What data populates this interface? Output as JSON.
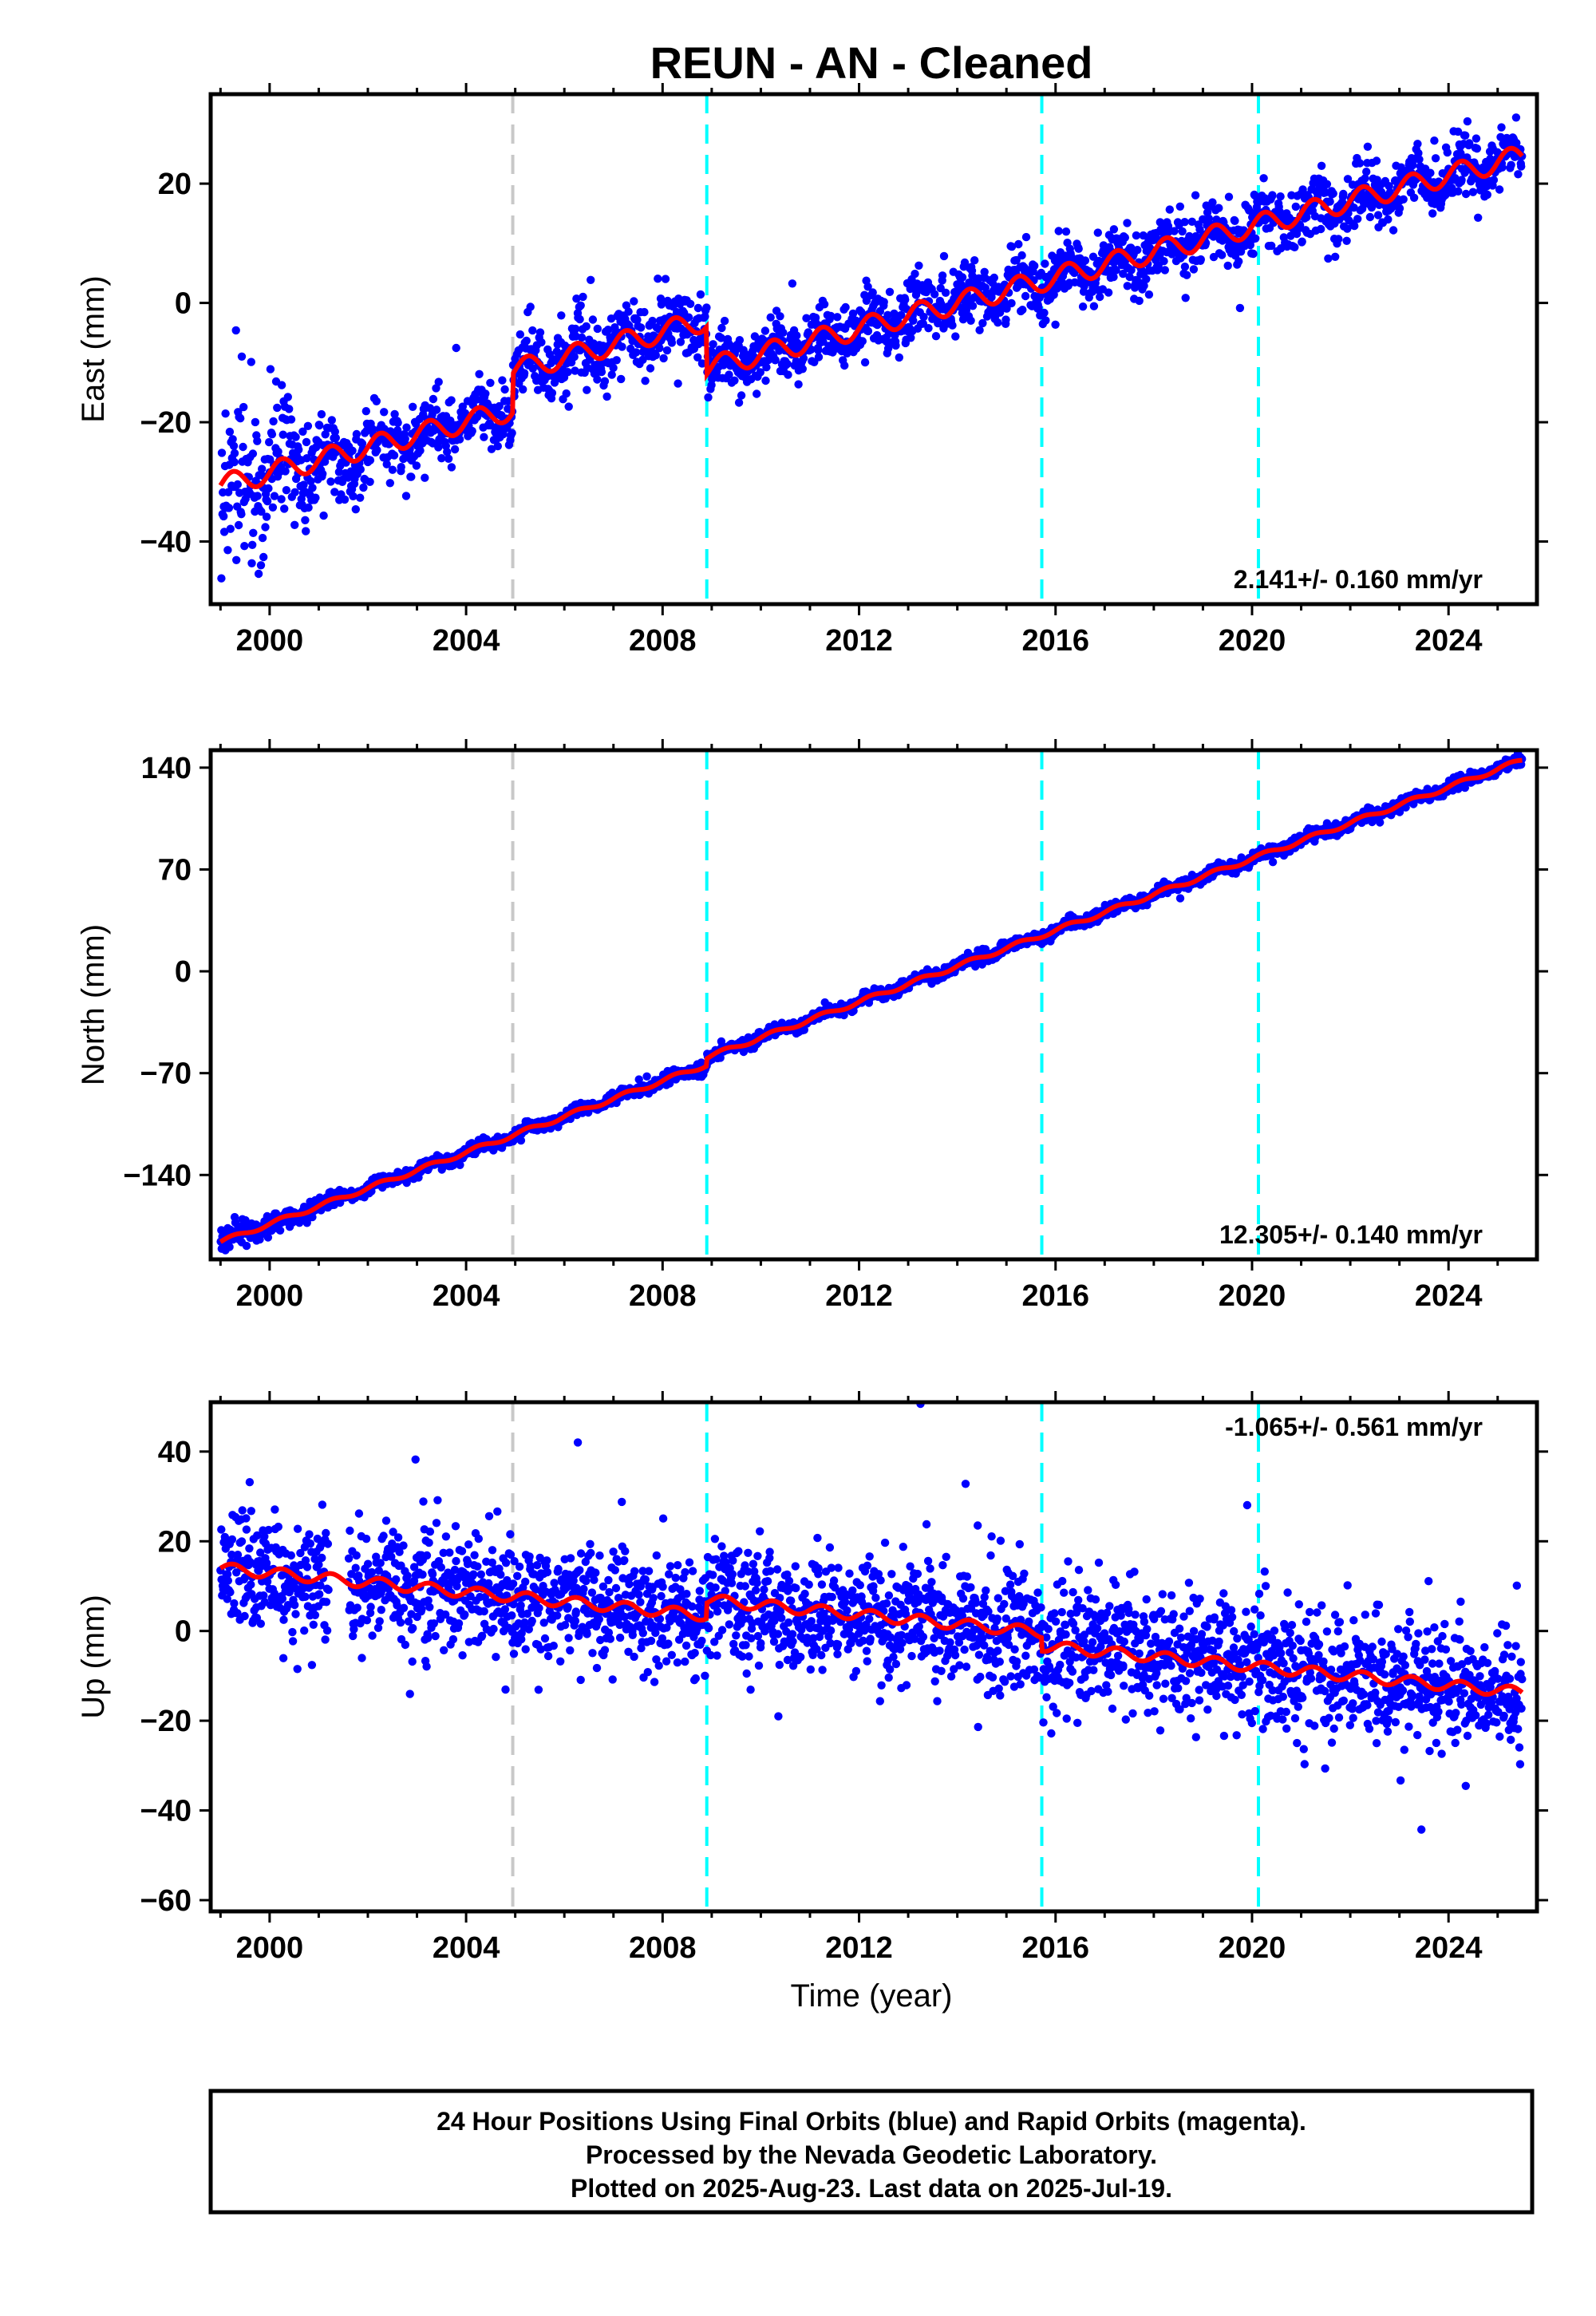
{
  "title": "REUN  - AN - Cleaned",
  "colors": {
    "data": "#0000ff",
    "model": "#ff0000",
    "antenna_change": "#00ffff",
    "other_event": "#c8c8c8"
  },
  "chart_data": [
    {
      "type": "scatter",
      "panel": "east",
      "ylabel": "East (mm)",
      "xlabel": "",
      "xlim": [
        1998.8,
        2025.8
      ],
      "ylim": [
        -50.5,
        35
      ],
      "yticks": [
        20,
        0,
        -20,
        -40
      ],
      "xticks": [
        2000,
        2004,
        2008,
        2012,
        2016,
        2020,
        2024
      ],
      "rate_label": "2.141+/- 0.160 mm/yr",
      "events": [
        {
          "x": 2004.95,
          "kind": "other"
        },
        {
          "x": 2008.9,
          "kind": "antenna"
        },
        {
          "x": 2015.72,
          "kind": "antenna"
        },
        {
          "x": 2020.13,
          "kind": "antenna"
        }
      ],
      "model": {
        "start": 1999.0,
        "end": 2025.5,
        "offset_at_start": -30.6,
        "rate": 2.141,
        "annual_amplitude": 1.8,
        "steps": [
          {
            "x": 2004.95,
            "dy": 6.5
          },
          {
            "x": 2008.9,
            "dy": -8.0
          }
        ]
      },
      "scatter": {
        "sigma": 2.6,
        "count": 2400,
        "early_extra_sigma": 5.0
      },
      "series": [
        {
          "values": "daily positions"
        }
      ]
    },
    {
      "type": "scatter",
      "panel": "north",
      "ylabel": "North (mm)",
      "xlabel": "",
      "xlim": [
        1998.8,
        2025.8
      ],
      "ylim": [
        -198,
        152
      ],
      "yticks": [
        140,
        70,
        0,
        -70,
        -140
      ],
      "xticks": [
        2000,
        2004,
        2008,
        2012,
        2016,
        2020,
        2024
      ],
      "rate_label": "12.305+/- 0.140 mm/yr",
      "events": [
        {
          "x": 2004.95,
          "kind": "other"
        },
        {
          "x": 2008.9,
          "kind": "antenna"
        },
        {
          "x": 2015.72,
          "kind": "antenna"
        },
        {
          "x": 2020.13,
          "kind": "antenna"
        }
      ],
      "model": {
        "start": 1999.0,
        "end": 2025.5,
        "offset_at_start": -186,
        "rate": 12.305,
        "annual_amplitude": 1.5,
        "steps": [
          {
            "x": 2008.9,
            "dy": 5.0
          }
        ]
      },
      "scatter": {
        "sigma": 2.0,
        "count": 2400,
        "early_extra_sigma": 2.0
      },
      "series": [
        {
          "values": "daily positions"
        }
      ]
    },
    {
      "type": "scatter",
      "panel": "up",
      "ylabel": "Up (mm)",
      "xlabel": "Time (year)",
      "xlim": [
        1998.8,
        2025.8
      ],
      "ylim": [
        -62.5,
        51
      ],
      "yticks": [
        40,
        20,
        0,
        -20,
        -40,
        -60
      ],
      "xticks": [
        2000,
        2004,
        2008,
        2012,
        2016,
        2020,
        2024
      ],
      "rate_label": "-1.065+/- 0.561 mm/yr",
      "events": [
        {
          "x": 2004.95,
          "kind": "other"
        },
        {
          "x": 2008.9,
          "kind": "antenna"
        },
        {
          "x": 2015.72,
          "kind": "antenna"
        },
        {
          "x": 2020.13,
          "kind": "antenna"
        }
      ],
      "model": {
        "start": 1999.0,
        "end": 2025.5,
        "offset_at_start": 14.0,
        "rate": -1.065,
        "annual_amplitude": 1.2,
        "steps": [
          {
            "x": 2008.9,
            "dy": 3.5
          },
          {
            "x": 2015.72,
            "dy": -3.0
          }
        ]
      },
      "scatter": {
        "sigma": 6.5,
        "count": 2600,
        "early_extra_sigma": 1.0
      },
      "series": [
        {
          "values": "daily positions"
        }
      ]
    }
  ],
  "footer": {
    "line1": "24 Hour Positions Using Final Orbits (blue) and Rapid Orbits (magenta).",
    "line2": "Processed by the Nevada Geodetic Laboratory.",
    "line3": "Plotted on 2025-Aug-23. Last data on 2025-Jul-19."
  }
}
